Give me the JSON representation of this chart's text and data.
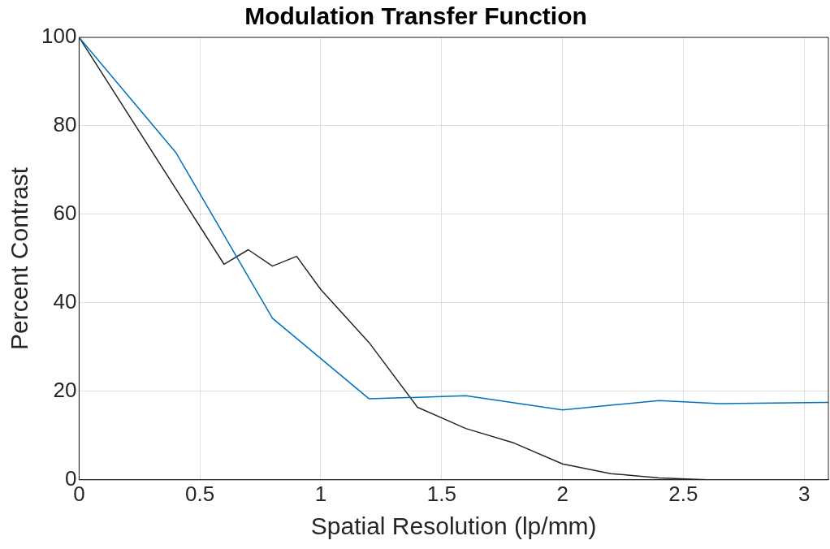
{
  "chart_data": {
    "type": "line",
    "title": "Modulation Transfer Function",
    "xlabel": "Spatial Resolution (lp/mm)",
    "ylabel": "Percent Contrast",
    "xlim": [
      0,
      3.1
    ],
    "xticks": [
      0,
      0.5,
      1,
      1.5,
      2,
      2.5,
      3
    ],
    "ylim": [
      0,
      100
    ],
    "yticks": [
      0,
      20,
      40,
      60,
      80,
      100
    ],
    "grid": true,
    "marker": "none",
    "line_style": "solid",
    "series": [
      {
        "color": "#0072bd",
        "x": [
          0,
          0.4,
          0.8,
          1.2,
          1.6,
          2.0,
          2.4,
          2.65,
          3.1
        ],
        "values": [
          100,
          74,
          36.5,
          18.3,
          19,
          15.8,
          17.9,
          17.2,
          17.5
        ]
      },
      {
        "color": "#262626",
        "x": [
          0,
          0.6,
          0.7,
          0.8,
          0.9,
          1.0,
          1.2,
          1.4,
          1.6,
          1.8,
          2.0,
          2.2,
          2.4,
          2.6,
          3.1
        ],
        "values": [
          100,
          48.7,
          52,
          48.3,
          50.5,
          43,
          31,
          16.4,
          11.6,
          8.3,
          3.6,
          1.4,
          0.4,
          0,
          0
        ]
      }
    ]
  }
}
